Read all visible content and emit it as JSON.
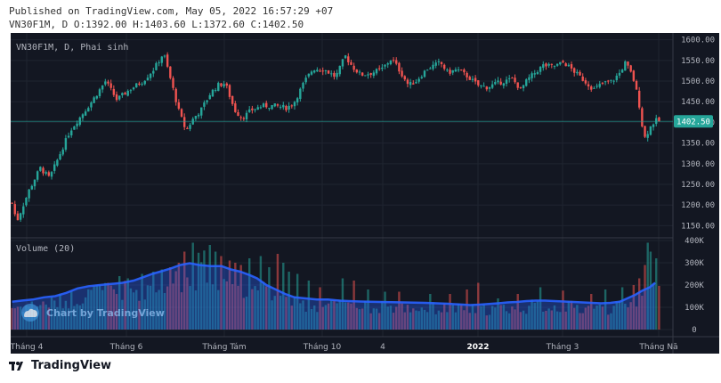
{
  "header": {
    "published_line": "Published on TradingView.com, May 05, 2022 16:57:29 +07",
    "ohlc_line": "VN30F1M, D O:1392.00 H:1403.60 L:1372.60 C:1402.50"
  },
  "price_pane": {
    "symbol_label": "VN30F1M, D, Phai sinh",
    "last_price_label": "1402.50",
    "last_price": 1402.5,
    "y_ticks": [
      "1600.00",
      "1550.00",
      "1500.00",
      "1450.00",
      "1400.00",
      "1350.00",
      "1300.00",
      "1250.00",
      "1200.00",
      "1150.00"
    ]
  },
  "volume_pane": {
    "label": "Volume (20)",
    "y_ticks": [
      "400K",
      "300K",
      "200K",
      "100K",
      "0"
    ]
  },
  "x_axis_labels": [
    "Tháng 4",
    "Tháng 6",
    "Tháng Tám",
    "Tháng 10",
    "4",
    "2022",
    "Tháng 3",
    "Tháng Nă"
  ],
  "watermark": "Chart by TradingView",
  "footer": {
    "brand": "TradingView"
  },
  "colors": {
    "background": "#131722",
    "up": "#26a69a",
    "down": "#ef5350",
    "volume_ma_line": "#2962ff",
    "last_price_badge": "#26a69a"
  },
  "chart_data": {
    "type": "candlestick",
    "price_ylim": [
      1125,
      1610
    ],
    "volume_ylim": [
      0,
      400000
    ],
    "price_path_points": [
      [
        0,
        1205
      ],
      [
        5,
        1160
      ],
      [
        18,
        1235
      ],
      [
        30,
        1290
      ],
      [
        40,
        1265
      ],
      [
        62,
        1380
      ],
      [
        85,
        1450
      ],
      [
        100,
        1500
      ],
      [
        112,
        1455
      ],
      [
        126,
        1480
      ],
      [
        140,
        1500
      ],
      [
        152,
        1530
      ],
      [
        162,
        1568
      ],
      [
        170,
        1500
      ],
      [
        178,
        1430
      ],
      [
        186,
        1380
      ],
      [
        194,
        1410
      ],
      [
        202,
        1430
      ],
      [
        212,
        1470
      ],
      [
        220,
        1490
      ],
      [
        228,
        1495
      ],
      [
        238,
        1430
      ],
      [
        246,
        1410
      ],
      [
        256,
        1430
      ],
      [
        268,
        1440
      ],
      [
        282,
        1440
      ],
      [
        294,
        1435
      ],
      [
        302,
        1450
      ],
      [
        313,
        1500
      ],
      [
        322,
        1530
      ],
      [
        334,
        1528
      ],
      [
        346,
        1510
      ],
      [
        352,
        1538
      ],
      [
        356,
        1562
      ],
      [
        364,
        1535
      ],
      [
        373,
        1515
      ],
      [
        385,
        1520
      ],
      [
        396,
        1530
      ],
      [
        406,
        1555
      ],
      [
        416,
        1520
      ],
      [
        424,
        1490
      ],
      [
        432,
        1500
      ],
      [
        444,
        1530
      ],
      [
        458,
        1545
      ],
      [
        466,
        1520
      ],
      [
        476,
        1528
      ],
      [
        488,
        1510
      ],
      [
        498,
        1490
      ],
      [
        508,
        1485
      ],
      [
        519,
        1495
      ],
      [
        535,
        1505
      ],
      [
        544,
        1480
      ],
      [
        552,
        1505
      ],
      [
        568,
        1538
      ],
      [
        578,
        1535
      ],
      [
        590,
        1545
      ],
      [
        598,
        1530
      ],
      [
        610,
        1505
      ],
      [
        622,
        1480
      ],
      [
        632,
        1495
      ],
      [
        642,
        1500
      ],
      [
        650,
        1520
      ],
      [
        656,
        1545
      ],
      [
        664,
        1510
      ],
      [
        670,
        1455
      ],
      [
        676,
        1360
      ],
      [
        683,
        1390
      ],
      [
        688,
        1405
      ],
      [
        692,
        1402.5
      ]
    ],
    "volume_ma_points": [
      [
        0,
        125
      ],
      [
        10,
        130
      ],
      [
        22,
        135
      ],
      [
        34,
        145
      ],
      [
        46,
        150
      ],
      [
        58,
        165
      ],
      [
        70,
        185
      ],
      [
        82,
        195
      ],
      [
        94,
        200
      ],
      [
        106,
        205
      ],
      [
        118,
        210
      ],
      [
        130,
        220
      ],
      [
        140,
        235
      ],
      [
        150,
        250
      ],
      [
        160,
        262
      ],
      [
        170,
        275
      ],
      [
        180,
        290
      ],
      [
        190,
        298
      ],
      [
        200,
        290
      ],
      [
        212,
        285
      ],
      [
        224,
        285
      ],
      [
        234,
        270
      ],
      [
        244,
        260
      ],
      [
        254,
        245
      ],
      [
        262,
        230
      ],
      [
        272,
        200
      ],
      [
        282,
        180
      ],
      [
        292,
        160
      ],
      [
        302,
        145
      ],
      [
        314,
        140
      ],
      [
        326,
        135
      ],
      [
        338,
        135
      ],
      [
        350,
        130
      ],
      [
        360,
        128
      ],
      [
        372,
        126
      ],
      [
        382,
        125
      ],
      [
        394,
        124
      ],
      [
        406,
        123
      ],
      [
        418,
        122
      ],
      [
        430,
        121
      ],
      [
        442,
        120
      ],
      [
        454,
        118
      ],
      [
        466,
        116
      ],
      [
        478,
        113
      ],
      [
        490,
        110
      ],
      [
        500,
        112
      ],
      [
        510,
        115
      ],
      [
        520,
        118
      ],
      [
        530,
        122
      ],
      [
        540,
        124
      ],
      [
        550,
        128
      ],
      [
        560,
        130
      ],
      [
        570,
        130
      ],
      [
        580,
        128
      ],
      [
        590,
        126
      ],
      [
        600,
        124
      ],
      [
        610,
        122
      ],
      [
        620,
        120
      ],
      [
        630,
        118
      ],
      [
        640,
        120
      ],
      [
        650,
        125
      ],
      [
        658,
        140
      ],
      [
        666,
        155
      ],
      [
        674,
        175
      ],
      [
        682,
        190
      ],
      [
        688,
        210
      ]
    ],
    "volume_spikes": [
      [
        92,
        200
      ],
      [
        103,
        210
      ],
      [
        115,
        240
      ],
      [
        124,
        230
      ],
      [
        138,
        250
      ],
      [
        150,
        260
      ],
      [
        160,
        270
      ],
      [
        170,
        280
      ],
      [
        178,
        300
      ],
      [
        183,
        350
      ],
      [
        193,
        390
      ],
      [
        200,
        345
      ],
      [
        206,
        355
      ],
      [
        213,
        380
      ],
      [
        218,
        350
      ],
      [
        224,
        330
      ],
      [
        232,
        310
      ],
      [
        240,
        300
      ],
      [
        246,
        290
      ],
      [
        254,
        320
      ],
      [
        266,
        330
      ],
      [
        276,
        280
      ],
      [
        283,
        340
      ],
      [
        290,
        300
      ],
      [
        296,
        260
      ],
      [
        304,
        250
      ],
      [
        316,
        220
      ],
      [
        330,
        190
      ],
      [
        346,
        180
      ],
      [
        353,
        230
      ],
      [
        366,
        220
      ],
      [
        380,
        180
      ],
      [
        398,
        170
      ],
      [
        414,
        170
      ],
      [
        446,
        160
      ],
      [
        468,
        160
      ],
      [
        488,
        180
      ],
      [
        498,
        210
      ],
      [
        520,
        140
      ],
      [
        540,
        160
      ],
      [
        566,
        190
      ],
      [
        590,
        175
      ],
      [
        618,
        160
      ],
      [
        636,
        180
      ],
      [
        652,
        190
      ],
      [
        664,
        200
      ],
      [
        670,
        230
      ],
      [
        676,
        290
      ],
      [
        680,
        390
      ],
      [
        684,
        350
      ],
      [
        690,
        320
      ]
    ]
  }
}
